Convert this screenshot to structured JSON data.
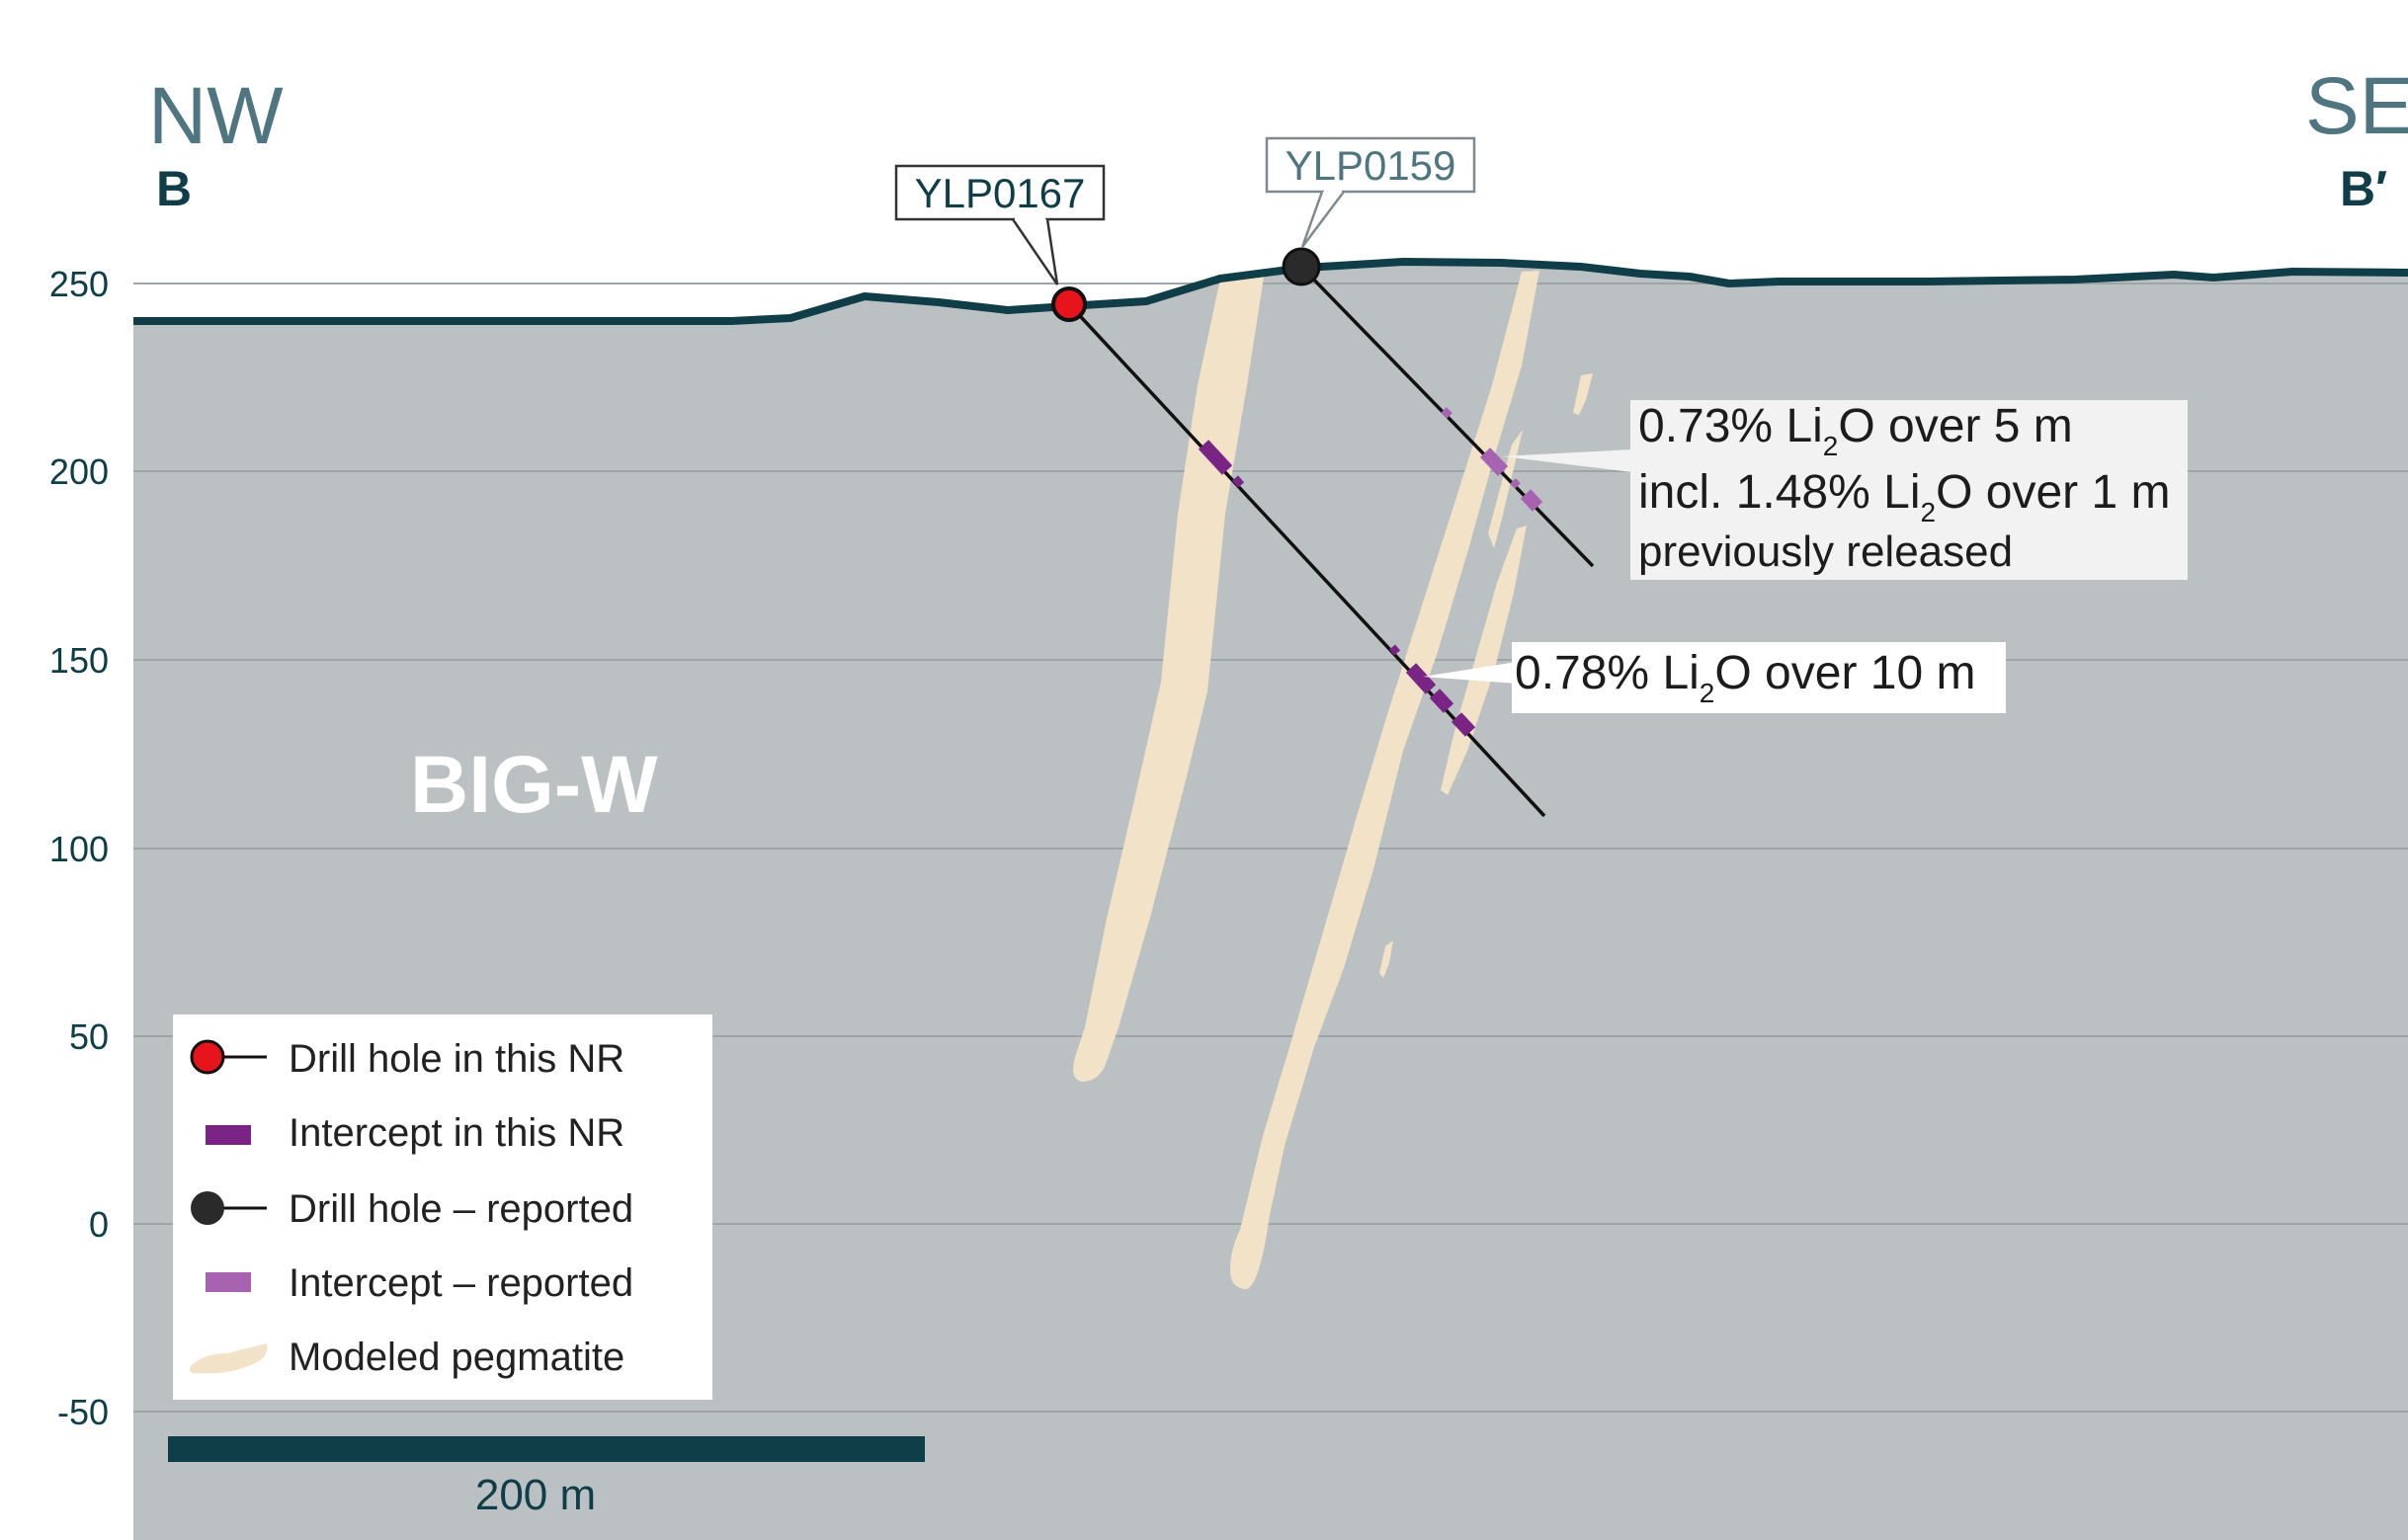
{
  "section": {
    "left_direction": "NW",
    "left_label": "B",
    "right_direction": "SE",
    "right_label": "B′",
    "domain_label": "BIG-W",
    "elevation_ticks": [
      "250",
      "200",
      "150",
      "100",
      "50",
      "0",
      "-50"
    ],
    "scale_bar_label": "200 m"
  },
  "drill_holes": {
    "new": {
      "id": "YLP0167",
      "color": "#e8141c"
    },
    "reported": {
      "id": "YLP0159",
      "color": "#2a2a2a"
    }
  },
  "callouts": {
    "upper": {
      "line1_a": "0.73% Li",
      "line1_sub": "2",
      "line1_b": "O over 5 m",
      "line2_a": "incl. 1.48% Li",
      "line2_sub": "2",
      "line2_b": "O over 1 m",
      "line3": "previously released"
    },
    "lower": {
      "line1_a": "0.78% Li",
      "line1_sub": "2",
      "line1_b": "O over 10 m"
    }
  },
  "legend": {
    "items": [
      {
        "label": "Drill hole in this NR",
        "icon": "red-drill-hole-icon"
      },
      {
        "label": "Intercept in this NR",
        "icon": "dark-purple-intercept-icon"
      },
      {
        "label": "Drill hole – reported",
        "icon": "black-drill-hole-icon"
      },
      {
        "label": "Intercept – reported",
        "icon": "light-purple-intercept-icon"
      },
      {
        "label": "Modeled pegmatite",
        "icon": "pegmatite-swatch-icon"
      }
    ]
  },
  "colors": {
    "ground": "#bbc0c3",
    "surface_line": "#0f3d48",
    "pegmatite": "#f2e3c8",
    "intercept_new": "#7a2585",
    "intercept_reported": "#a763b0",
    "gridline": "#9ea4a8"
  }
}
